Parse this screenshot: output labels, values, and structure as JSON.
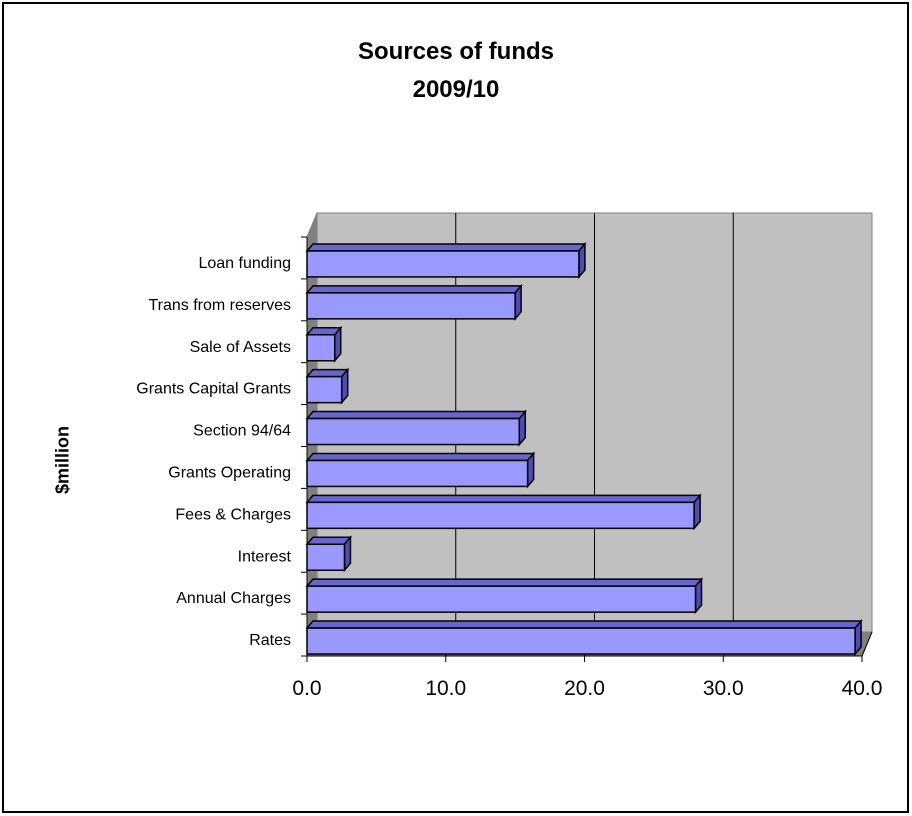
{
  "chart_data": {
    "type": "bar",
    "orientation": "horizontal",
    "title": "Sources of funds",
    "subtitle": "2009/10",
    "ylabel": "$million",
    "xlabel": "",
    "categories": [
      "Rates",
      "Annual Charges",
      "Interest",
      "Fees & Charges",
      "Grants Operating",
      "Section 94/64",
      "Grants Capital Grants",
      "Sale of Assets",
      "Trans from reserves",
      "Loan funding"
    ],
    "values": [
      39.5,
      28.0,
      2.7,
      27.9,
      15.9,
      15.3,
      2.5,
      2.0,
      15.0,
      19.6
    ],
    "xlim": [
      0,
      40
    ],
    "xticks": [
      "0.0",
      "10.0",
      "20.0",
      "30.0",
      "40.0"
    ],
    "grid": true,
    "three_d": true,
    "colors": {
      "bar_front": "#9999ff",
      "bar_top": "#6666cc",
      "bar_side": "#4d4db3",
      "plot_back": "#c0c0c0",
      "plot_floor": "#808080",
      "outline": "#000000"
    }
  }
}
